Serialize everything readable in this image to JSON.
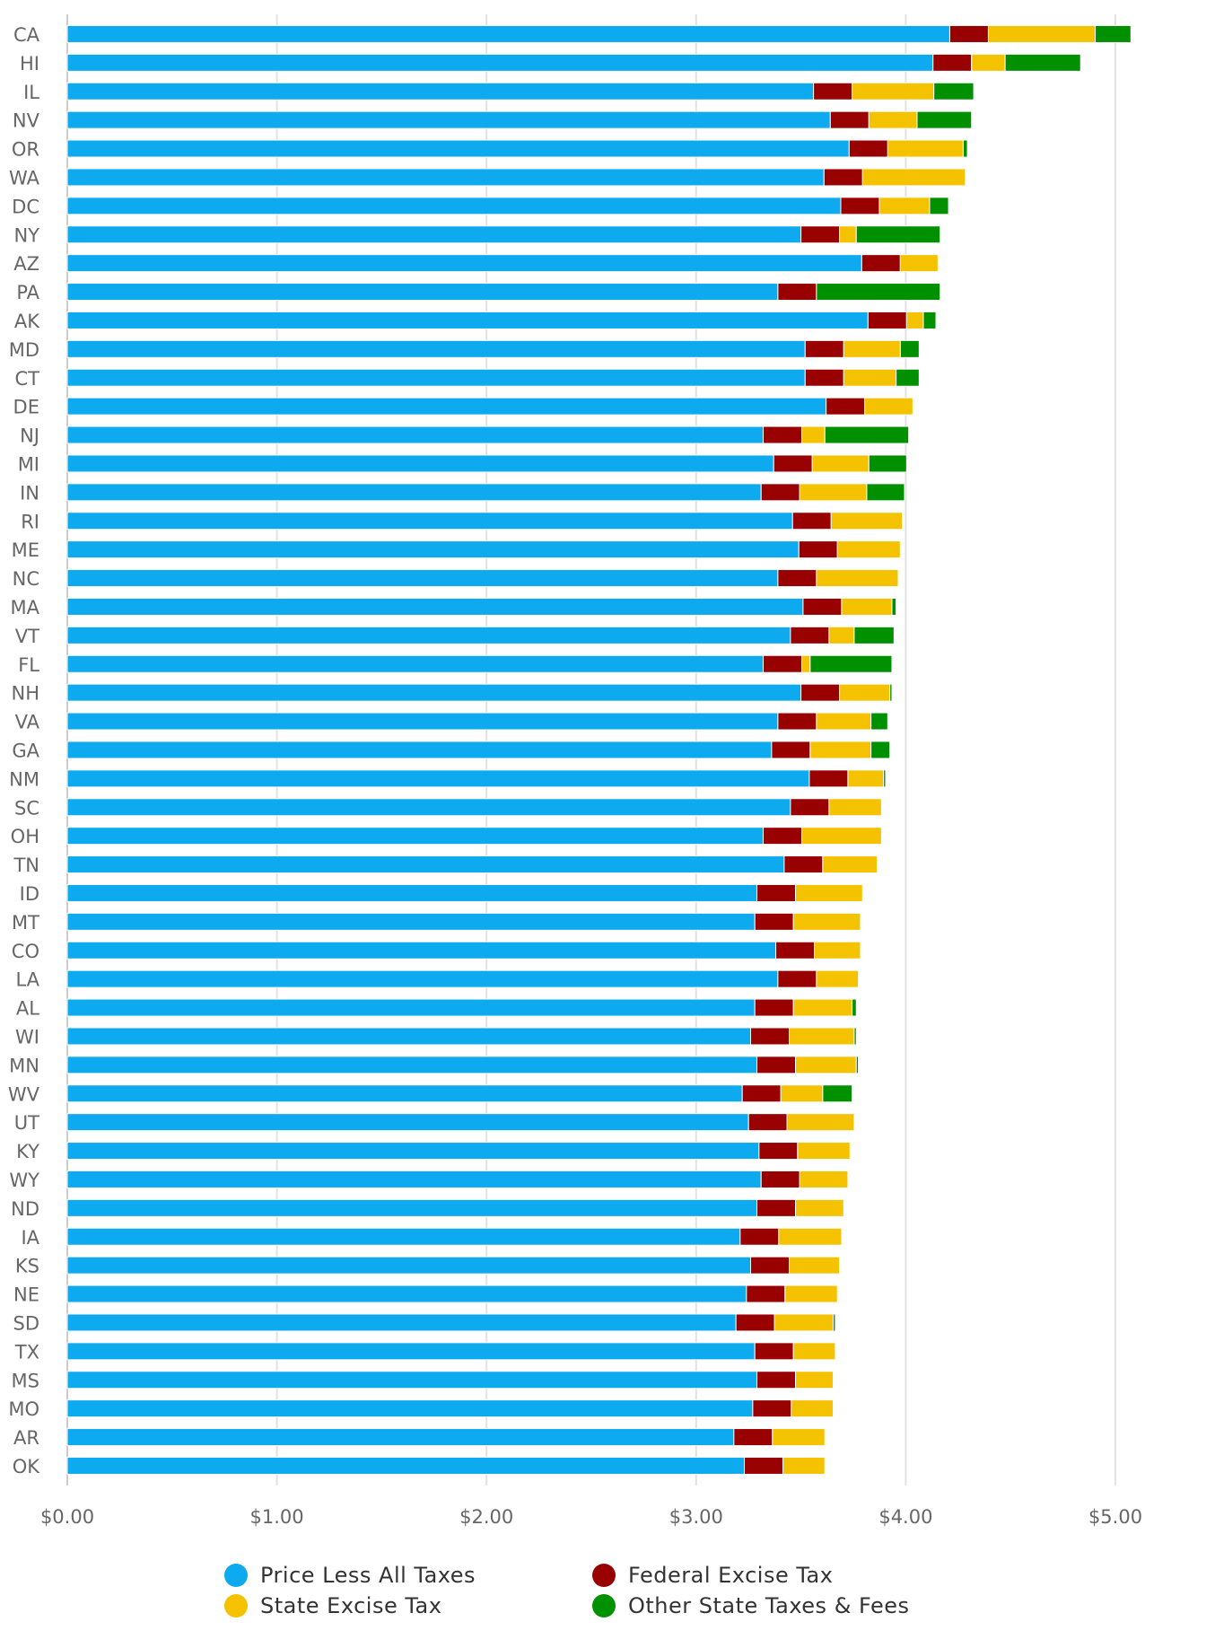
{
  "chart_data": {
    "type": "bar",
    "orientation": "horizontal",
    "stacked": true,
    "title": "",
    "xlabel": "",
    "ylabel": "",
    "xlim": [
      0,
      5.0
    ],
    "x_ticks": [
      "$0.00",
      "$1.00",
      "$2.00",
      "$3.00",
      "$4.00",
      "$5.00"
    ],
    "x_tick_values": [
      0,
      1,
      2,
      3,
      4,
      5
    ],
    "grid": "vertical",
    "legend_position": "bottom",
    "categories": [
      "CA",
      "HI",
      "IL",
      "NV",
      "OR",
      "WA",
      "DC",
      "NY",
      "AZ",
      "PA",
      "AK",
      "MD",
      "CT",
      "DE",
      "NJ",
      "MI",
      "IN",
      "RI",
      "ME",
      "NC",
      "MA",
      "VT",
      "FL",
      "NH",
      "VA",
      "GA",
      "NM",
      "SC",
      "OH",
      "TN",
      "ID",
      "MT",
      "CO",
      "LA",
      "AL",
      "WI",
      "MN",
      "WV",
      "UT",
      "KY",
      "WY",
      "ND",
      "IA",
      "KS",
      "NE",
      "SD",
      "TX",
      "MS",
      "MO",
      "AR",
      "OK"
    ],
    "series": [
      {
        "name": "Price Less All Taxes",
        "color": "#0eaaf0",
        "values": [
          4.21,
          4.13,
          3.56,
          3.64,
          3.73,
          3.61,
          3.69,
          3.5,
          3.79,
          3.39,
          3.82,
          3.52,
          3.52,
          3.62,
          3.32,
          3.37,
          3.31,
          3.46,
          3.49,
          3.39,
          3.51,
          3.45,
          3.32,
          3.5,
          3.39,
          3.36,
          3.54,
          3.45,
          3.32,
          3.42,
          3.29,
          3.28,
          3.38,
          3.39,
          3.28,
          3.26,
          3.29,
          3.22,
          3.25,
          3.3,
          3.31,
          3.29,
          3.21,
          3.26,
          3.24,
          3.19,
          3.28,
          3.29,
          3.27,
          3.18,
          3.23
        ]
      },
      {
        "name": "Federal Excise Tax",
        "color": "#990000",
        "values": [
          0.184,
          0.184,
          0.184,
          0.184,
          0.184,
          0.184,
          0.184,
          0.184,
          0.184,
          0.184,
          0.184,
          0.184,
          0.184,
          0.184,
          0.184,
          0.184,
          0.184,
          0.184,
          0.184,
          0.184,
          0.184,
          0.184,
          0.184,
          0.184,
          0.184,
          0.184,
          0.184,
          0.184,
          0.184,
          0.184,
          0.184,
          0.184,
          0.184,
          0.184,
          0.184,
          0.184,
          0.184,
          0.184,
          0.184,
          0.184,
          0.184,
          0.184,
          0.184,
          0.184,
          0.184,
          0.184,
          0.184,
          0.184,
          0.184,
          0.184,
          0.184
        ]
      },
      {
        "name": "State Excise Tax",
        "color": "#f5c200",
        "values": [
          0.51,
          0.16,
          0.39,
          0.23,
          0.36,
          0.49,
          0.24,
          0.08,
          0.18,
          0.0,
          0.08,
          0.27,
          0.25,
          0.23,
          0.11,
          0.27,
          0.32,
          0.34,
          0.3,
          0.39,
          0.24,
          0.12,
          0.04,
          0.24,
          0.26,
          0.29,
          0.17,
          0.25,
          0.38,
          0.26,
          0.32,
          0.32,
          0.22,
          0.2,
          0.28,
          0.31,
          0.29,
          0.2,
          0.32,
          0.25,
          0.23,
          0.23,
          0.3,
          0.24,
          0.25,
          0.28,
          0.2,
          0.18,
          0.2,
          0.25,
          0.2
        ]
      },
      {
        "name": "Other State Taxes & Fees",
        "color": "#009000",
        "values": [
          0.17,
          0.36,
          0.19,
          0.26,
          0.02,
          0.0,
          0.09,
          0.4,
          0.0,
          0.59,
          0.06,
          0.09,
          0.11,
          0.0,
          0.4,
          0.18,
          0.18,
          0.0,
          0.0,
          0.0,
          0.02,
          0.19,
          0.39,
          0.01,
          0.08,
          0.09,
          0.01,
          0.0,
          0.0,
          0.0,
          0.0,
          0.0,
          0.0,
          0.0,
          0.02,
          0.01,
          0.01,
          0.14,
          0.0,
          0.0,
          0.0,
          0.0,
          0.0,
          0.0,
          0.0,
          0.01,
          0.0,
          0.0,
          0.0,
          0.0,
          0.0
        ]
      }
    ]
  }
}
